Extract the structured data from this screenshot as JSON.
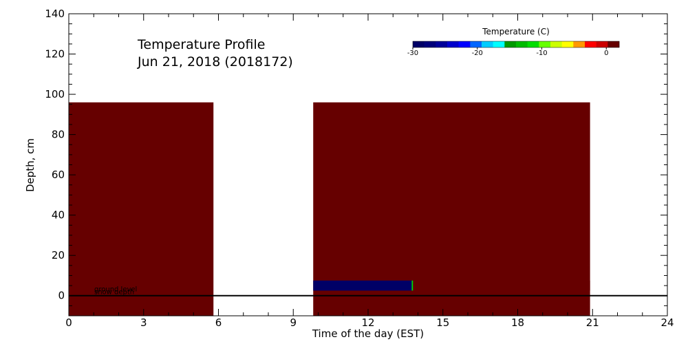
{
  "chart_data": {
    "type": "heatmap",
    "title": "Temperature Profile",
    "subtitle": "Jun 21, 2018 (2018172)",
    "xlabel": "Time of the day (EST)",
    "ylabel": "Depth, cm",
    "xlim": [
      0,
      24
    ],
    "ylim": [
      -10,
      140
    ],
    "x_ticks": [
      0,
      3,
      6,
      9,
      12,
      15,
      18,
      21,
      24
    ],
    "y_ticks": [
      0,
      20,
      40,
      60,
      80,
      100,
      120,
      140
    ],
    "x_minor_step": 1,
    "y_minor_step": 5,
    "colorbar": {
      "title": "Temperature (C)",
      "range": [
        -30,
        2
      ],
      "ticks": [
        -30,
        -20,
        -10,
        0
      ],
      "colors": [
        "#000066",
        "#00007a",
        "#000099",
        "#0000cc",
        "#0000ff",
        "#0066ff",
        "#00ccff",
        "#00ffff",
        "#009900",
        "#00bb00",
        "#00dd00",
        "#66ff00",
        "#ccff00",
        "#ffff00",
        "#ff9900",
        "#ff0000",
        "#cc0000",
        "#660000"
      ]
    },
    "cells": [
      {
        "x0": 0,
        "x1": 5.8,
        "y0": -10,
        "y1": 96,
        "temp": 2
      },
      {
        "x0": 9.8,
        "x1": 20.9,
        "y0": -10,
        "y1": 96,
        "temp": 2
      },
      {
        "x0": 9.8,
        "x1": 13.8,
        "y0": 2.5,
        "y1": 7.5,
        "temp": -29
      },
      {
        "x0": 13.75,
        "x1": 13.8,
        "y0": 2.5,
        "y1": 7.5,
        "temp": -12
      },
      {
        "x0": 17.8,
        "x1": 20.9,
        "y0": 2.5,
        "y1": 7.5,
        "temp": 0.5
      }
    ],
    "reference_lines": [
      {
        "y": 0,
        "label": "ground level"
      },
      {
        "y": 0,
        "label": "snow depth"
      }
    ]
  }
}
